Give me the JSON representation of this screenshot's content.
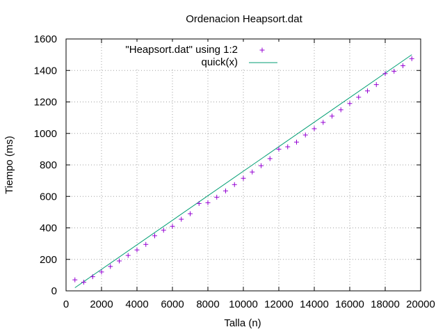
{
  "chart_data": {
    "type": "scatter",
    "title": "Ordenacion Heapsort.dat",
    "xlabel": "Talla (n)",
    "ylabel": "Tiempo (ms)",
    "xlim": [
      0,
      20000
    ],
    "ylim": [
      0,
      1600
    ],
    "xticks": [
      0,
      2000,
      4000,
      6000,
      8000,
      10000,
      12000,
      14000,
      16000,
      18000,
      20000
    ],
    "yticks": [
      0,
      200,
      400,
      600,
      800,
      1000,
      1200,
      1400,
      1600
    ],
    "grid": true,
    "legend_position": "top-right",
    "series": [
      {
        "name": "\"Heapsort.dat\" using 1:2",
        "kind": "points",
        "marker": "+",
        "color": "#9400d3",
        "x": [
          500,
          1000,
          1500,
          2000,
          2500,
          3000,
          3500,
          4000,
          4500,
          5000,
          5500,
          6000,
          6500,
          7000,
          7500,
          8000,
          8500,
          9000,
          9500,
          10000,
          10500,
          11000,
          11500,
          12000,
          12500,
          13000,
          13500,
          14000,
          14500,
          15000,
          15500,
          16000,
          16500,
          17000,
          17500,
          18000,
          18500,
          19000,
          19500
        ],
        "y": [
          70,
          55,
          90,
          120,
          155,
          190,
          225,
          260,
          295,
          350,
          385,
          410,
          455,
          490,
          555,
          560,
          595,
          635,
          675,
          715,
          755,
          795,
          840,
          900,
          915,
          945,
          990,
          1030,
          1070,
          1110,
          1150,
          1190,
          1230,
          1270,
          1310,
          1380,
          1395,
          1430,
          1475
        ]
      },
      {
        "name": "quick(x)",
        "kind": "line",
        "color": "#009e73",
        "x": [
          500,
          19500
        ],
        "y": [
          20,
          1500
        ]
      }
    ]
  }
}
